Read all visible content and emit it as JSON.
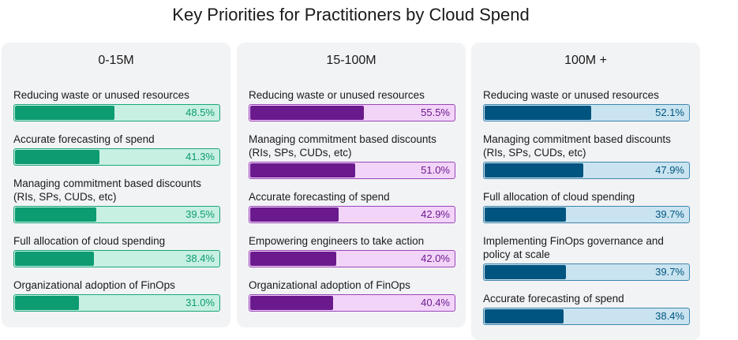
{
  "title": "Key Priorities for Practitioners by Cloud Spend",
  "colors": {
    "green": {
      "fill": "#0d9b72",
      "track": "#c7f0e2",
      "border": "#1aa579",
      "text": "#0d9b72"
    },
    "purple": {
      "fill": "#6a1a8d",
      "track": "#f3d4f9",
      "border": "#9a46b8",
      "text": "#6a1a8d"
    },
    "blue": {
      "fill": "#005480",
      "track": "#c9e4f0",
      "border": "#3e86ad",
      "text": "#005480"
    }
  },
  "chart_data": [
    {
      "type": "bar",
      "title": "0-15M",
      "orientation": "horizontal",
      "categories": [
        "Reducing waste or unused resources",
        "Accurate forecasting of spend",
        "Managing commitment based discounts (RIs, SPs, CUDs, etc)",
        "Full allocation of cloud spending",
        "Organizational adoption of FinOps"
      ],
      "values": [
        48.5,
        41.3,
        39.5,
        38.4,
        31.0
      ],
      "value_labels": [
        "48.5%",
        "41.3%",
        "39.5%",
        "38.4%",
        "31.0%"
      ],
      "xlim": [
        0,
        100
      ]
    },
    {
      "type": "bar",
      "title": "15-100M",
      "orientation": "horizontal",
      "categories": [
        "Reducing waste or unused resources",
        "Managing commitment based discounts (RIs, SPs, CUDs, etc)",
        "Accurate forecasting of spend",
        "Empowering engineers to take action",
        "Organizational adoption of FinOps"
      ],
      "values": [
        55.5,
        51.0,
        42.9,
        42.0,
        40.4
      ],
      "value_labels": [
        "55.5%",
        "51.0%",
        "42.9%",
        "42.0%",
        "40.4%"
      ],
      "xlim": [
        0,
        100
      ]
    },
    {
      "type": "bar",
      "title": "100M +",
      "orientation": "horizontal",
      "categories": [
        "Reducing waste or unused resources",
        "Managing commitment based discounts (RIs, SPs, CUDs, etc)",
        "Full allocation of cloud spending",
        "Implementing FinOps governance and policy at scale",
        "Accurate forecasting of spend"
      ],
      "values": [
        52.1,
        47.9,
        39.7,
        39.7,
        38.4
      ],
      "value_labels": [
        "52.1%",
        "47.9%",
        "39.7%",
        "39.7%",
        "38.4%"
      ],
      "xlim": [
        0,
        100
      ]
    }
  ]
}
